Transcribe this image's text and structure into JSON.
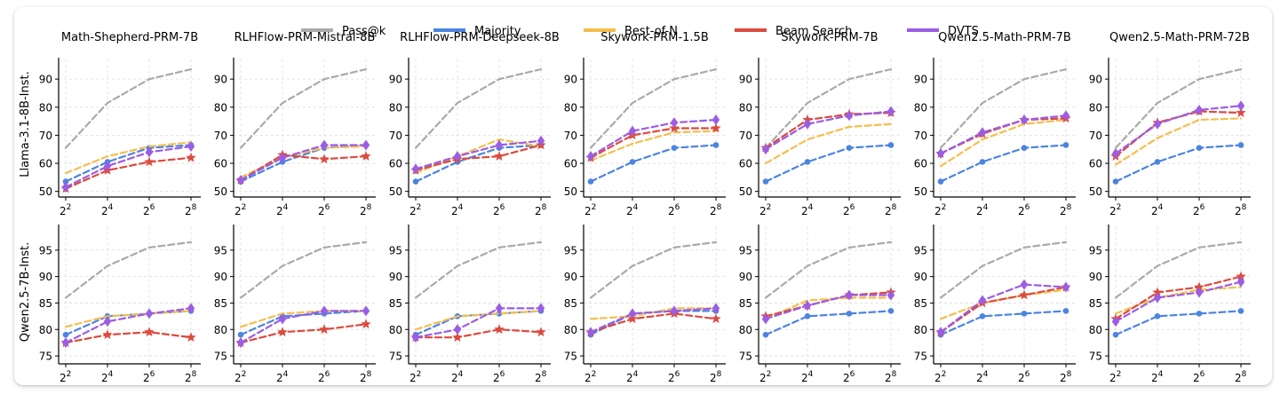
{
  "chart_data": {
    "type": "line",
    "grid": true,
    "legend_placement": "top-center",
    "x": [
      "2^2",
      "2^4",
      "2^6",
      "2^8"
    ],
    "x_tick_labels": [
      {
        "base": "2",
        "exp": "2"
      },
      {
        "base": "2",
        "exp": "4"
      },
      {
        "base": "2",
        "exp": "6"
      },
      {
        "base": "2",
        "exp": "8"
      }
    ],
    "legend": [
      {
        "name": "Pass@k",
        "color": "#aaaaaa",
        "marker": "none"
      },
      {
        "name": "Majority",
        "color": "#4c84e0",
        "marker": "circle"
      },
      {
        "name": "Best-of-N",
        "color": "#f4be4e",
        "marker": "none"
      },
      {
        "name": "Beam Search",
        "color": "#dc4a3e",
        "marker": "star"
      },
      {
        "name": "DVTS",
        "color": "#9b5de5",
        "marker": "diamond"
      }
    ],
    "columns": [
      "Math-Shepherd-PRM-7B",
      "RLHFlow-PRM-Mistral-8B",
      "RLHFlow-PRM-Deepseek-8B",
      "Skywork-PRM-1.5B",
      "Skywork-PRM-7B",
      "Qwen2.5-Math-PRM-7B",
      "Qwen2.5-Math-PRM-72B"
    ],
    "rows": [
      {
        "label": "Llama-3.1-8B-Inst.",
        "ylim": [
          48,
          97
        ],
        "yticks": [
          50,
          60,
          70,
          80,
          90
        ],
        "panels": [
          {
            "Pass@k": [
              65.5,
              81.5,
              90.0,
              93.5
            ],
            "Majority": [
              53.5,
              60.5,
              65.5,
              66.5
            ],
            "Best-of-N": [
              56.5,
              62.5,
              66.0,
              67.5
            ],
            "Beam Search": [
              51.0,
              57.5,
              60.5,
              62.0
            ],
            "DVTS": [
              51.5,
              59.0,
              64.0,
              66.0
            ]
          },
          {
            "Pass@k": [
              65.5,
              81.5,
              90.0,
              93.5
            ],
            "Majority": [
              53.5,
              60.5,
              65.5,
              66.5
            ],
            "Best-of-N": [
              55.0,
              62.0,
              65.5,
              66.0
            ],
            "Beam Search": [
              54.0,
              63.0,
              61.5,
              62.5
            ],
            "DVTS": [
              54.0,
              62.0,
              66.5,
              66.5
            ]
          },
          {
            "Pass@k": [
              65.5,
              81.5,
              90.0,
              93.5
            ],
            "Majority": [
              53.5,
              60.5,
              65.5,
              66.5
            ],
            "Best-of-N": [
              56.5,
              62.5,
              68.5,
              66.0
            ],
            "Beam Search": [
              57.5,
              61.5,
              62.5,
              66.5
            ],
            "DVTS": [
              58.0,
              62.5,
              66.5,
              68.0
            ]
          },
          {
            "Pass@k": [
              65.5,
              81.5,
              90.0,
              93.5
            ],
            "Majority": [
              53.5,
              60.5,
              65.5,
              66.5
            ],
            "Best-of-N": [
              61.0,
              67.0,
              71.0,
              71.5
            ],
            "Beam Search": [
              62.0,
              70.0,
              72.5,
              72.5
            ],
            "DVTS": [
              62.5,
              71.5,
              74.5,
              75.5
            ]
          },
          {
            "Pass@k": [
              65.5,
              81.5,
              90.0,
              93.5
            ],
            "Majority": [
              53.5,
              60.5,
              65.5,
              66.5
            ],
            "Best-of-N": [
              60.0,
              68.5,
              73.0,
              74.0
            ],
            "Beam Search": [
              65.5,
              75.5,
              77.5,
              78.0
            ],
            "DVTS": [
              65.0,
              74.0,
              77.0,
              78.5
            ]
          },
          {
            "Pass@k": [
              65.5,
              81.5,
              90.0,
              93.5
            ],
            "Majority": [
              53.5,
              60.5,
              65.5,
              66.5
            ],
            "Best-of-N": [
              59.0,
              68.5,
              74.0,
              75.5
            ],
            "Beam Search": [
              63.5,
              70.5,
              75.5,
              76.0
            ],
            "DVTS": [
              63.5,
              71.0,
              75.5,
              77.0
            ]
          },
          {
            "Pass@k": [
              65.5,
              81.5,
              90.0,
              93.5
            ],
            "Majority": [
              53.5,
              60.5,
              65.5,
              66.5
            ],
            "Best-of-N": [
              59.5,
              69.0,
              75.5,
              76.0
            ],
            "Beam Search": [
              62.5,
              74.5,
              78.5,
              78.0
            ],
            "DVTS": [
              63.5,
              74.0,
              79.0,
              80.5
            ]
          }
        ]
      },
      {
        "label": "Qwen2.5-7B-Inst.",
        "ylim": [
          73.5,
          99.5
        ],
        "yticks": [
          75,
          80,
          85,
          90,
          95
        ],
        "panels": [
          {
            "Pass@k": [
              86.0,
              92.0,
              95.5,
              96.5
            ],
            "Majority": [
              79.0,
              82.5,
              83.0,
              83.5
            ],
            "Best-of-N": [
              80.5,
              82.5,
              83.0,
              83.5
            ],
            "Beam Search": [
              77.5,
              79.0,
              79.5,
              78.5
            ],
            "DVTS": [
              77.5,
              81.5,
              83.0,
              84.0
            ]
          },
          {
            "Pass@k": [
              86.0,
              92.0,
              95.5,
              96.5
            ],
            "Majority": [
              79.0,
              82.5,
              83.0,
              83.5
            ],
            "Best-of-N": [
              80.5,
              83.0,
              83.5,
              83.5
            ],
            "Beam Search": [
              77.5,
              79.5,
              80.0,
              81.0
            ],
            "DVTS": [
              77.5,
              82.0,
              83.5,
              83.5
            ]
          },
          {
            "Pass@k": [
              86.0,
              92.0,
              95.5,
              96.5
            ],
            "Majority": [
              79.0,
              82.5,
              83.0,
              83.5
            ],
            "Best-of-N": [
              80.0,
              82.5,
              83.0,
              83.5
            ],
            "Beam Search": [
              78.5,
              78.5,
              80.0,
              79.5
            ],
            "DVTS": [
              78.5,
              80.0,
              84.0,
              84.0
            ]
          },
          {
            "Pass@k": [
              86.0,
              92.0,
              95.5,
              96.5
            ],
            "Majority": [
              79.0,
              83.0,
              83.5,
              83.5
            ],
            "Best-of-N": [
              82.0,
              82.5,
              84.0,
              84.0
            ],
            "Beam Search": [
              79.5,
              82.0,
              83.0,
              82.0
            ],
            "DVTS": [
              79.5,
              83.0,
              83.5,
              84.0
            ]
          },
          {
            "Pass@k": [
              86.0,
              92.0,
              95.5,
              96.5
            ],
            "Majority": [
              79.0,
              82.5,
              83.0,
              83.5
            ],
            "Best-of-N": [
              82.0,
              85.5,
              86.0,
              86.0
            ],
            "Beam Search": [
              82.5,
              84.5,
              86.5,
              87.0
            ],
            "DVTS": [
              82.0,
              84.5,
              86.5,
              86.5
            ]
          },
          {
            "Pass@k": [
              86.0,
              92.0,
              95.5,
              96.5
            ],
            "Majority": [
              79.0,
              82.5,
              83.0,
              83.5
            ],
            "Best-of-N": [
              82.0,
              85.0,
              86.5,
              87.5
            ],
            "Beam Search": [
              79.5,
              85.0,
              86.5,
              88.0
            ],
            "DVTS": [
              79.5,
              85.5,
              88.5,
              88.0
            ]
          },
          {
            "Pass@k": [
              86.0,
              92.0,
              95.5,
              96.5
            ],
            "Majority": [
              79.0,
              82.5,
              83.0,
              83.5
            ],
            "Best-of-N": [
              83.0,
              86.0,
              87.5,
              88.0
            ],
            "Beam Search": [
              82.0,
              87.0,
              88.0,
              90.0
            ],
            "DVTS": [
              81.5,
              86.0,
              87.0,
              89.0
            ]
          }
        ]
      }
    ]
  }
}
